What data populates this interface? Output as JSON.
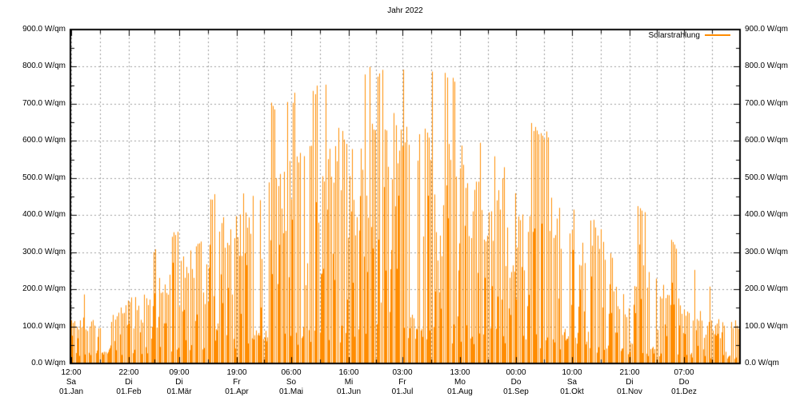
{
  "title": "Jahr 2022",
  "chart_data": {
    "type": "bar",
    "style": "gnuplot-impulses",
    "title": "Jahr 2022",
    "legend_position": "top-right-inside",
    "series": [
      {
        "name": "Solarstrahlung",
        "color": "#ff8c00"
      }
    ],
    "y_axis": {
      "unit": "W/qm",
      "min": 0,
      "max": 900,
      "tick_step": 100,
      "minor_tick_step": 50,
      "labels_on_both_sides": true,
      "tick_labels": [
        "0.0 W/qm",
        "100.0 W/qm",
        "200.0 W/qm",
        "300.0 W/qm",
        "400.0 W/qm",
        "500.0 W/qm",
        "600.0 W/qm",
        "700.0 W/qm",
        "800.0 W/qm",
        "900.0 W/qm"
      ]
    },
    "x_axis": {
      "range_hours": 8760,
      "minor_ticks": "mid-month",
      "ticks": [
        {
          "time": "12:00",
          "weekday": "Sa",
          "date": "01.Jan",
          "hour": 12
        },
        {
          "time": "22:00",
          "weekday": "Di",
          "date": "01.Feb",
          "hour": 766
        },
        {
          "time": "09:00",
          "weekday": "Di",
          "date": "01.Mär",
          "hour": 1425
        },
        {
          "time": "19:00",
          "weekday": "Fr",
          "date": "01.Apr",
          "hour": 2179
        },
        {
          "time": "06:00",
          "weekday": "So",
          "date": "01.Mai",
          "hour": 2886
        },
        {
          "time": "16:00",
          "weekday": "Mi",
          "date": "01.Jun",
          "hour": 3640
        },
        {
          "time": "03:00",
          "weekday": "Fr",
          "date": "01.Jul",
          "hour": 4347
        },
        {
          "time": "13:00",
          "weekday": "Mo",
          "date": "01.Aug",
          "hour": 5101
        },
        {
          "time": "00:00",
          "weekday": "Do",
          "date": "01.Sep",
          "hour": 5832
        },
        {
          "time": "10:00",
          "weekday": "Sa",
          "date": "01.Okt",
          "hour": 6562
        },
        {
          "time": "21:00",
          "weekday": "Di",
          "date": "01.Nov",
          "hour": 7317
        },
        {
          "time": "07:00",
          "weekday": "Do",
          "date": "01.Dez",
          "hour": 8023
        }
      ]
    },
    "grid": {
      "horizontal": "major-only",
      "vertical": "major-and-minor",
      "line_style": "dashed",
      "color": "#9c9c9c"
    },
    "monthly_envelope": {
      "months": [
        "Jan",
        "Feb",
        "Mär",
        "Apr",
        "Mai",
        "Jun",
        "Jul",
        "Aug",
        "Sep",
        "Okt",
        "Nov",
        "Dez"
      ],
      "daily_peak_wqm": [
        190,
        310,
        430,
        700,
        760,
        805,
        800,
        740,
        630,
        520,
        390,
        200
      ],
      "daily_typical_max_wqm": [
        120,
        220,
        350,
        520,
        620,
        680,
        690,
        600,
        480,
        380,
        230,
        120
      ],
      "dense_base_wqm": [
        30,
        45,
        65,
        80,
        95,
        103,
        100,
        90,
        70,
        50,
        30,
        22
      ]
    },
    "annual_max_wqm": 805,
    "colors": {
      "impulse": "#ff8c00",
      "border": "#000000",
      "grid": "#9c9c9c"
    }
  }
}
